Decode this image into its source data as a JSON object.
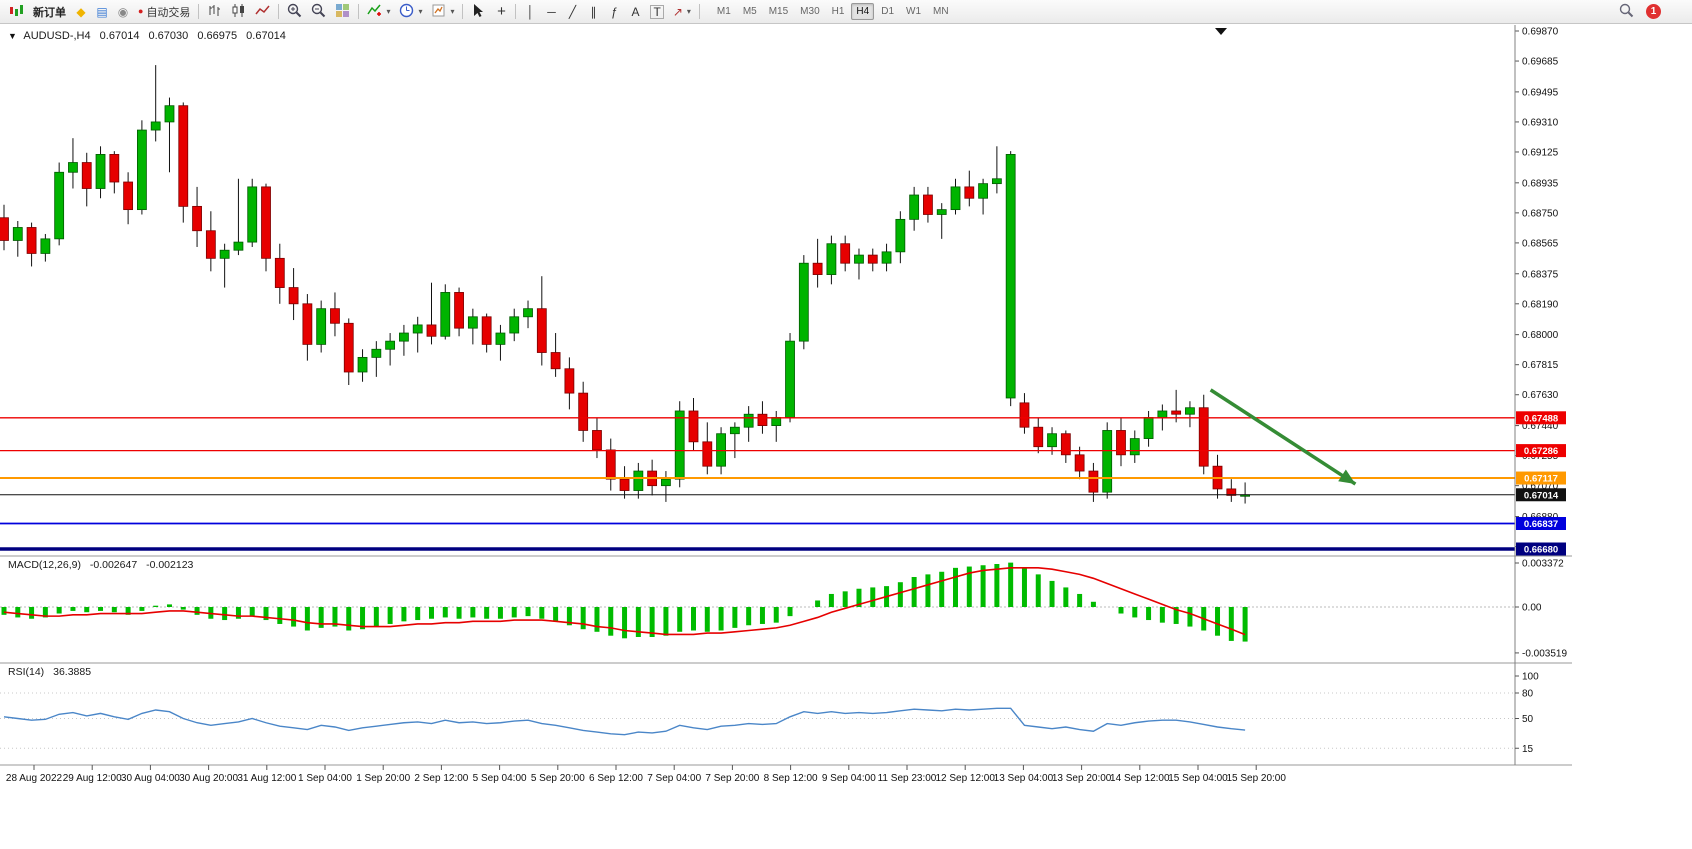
{
  "toolbar": {
    "new_order": "新订单",
    "autotrading": "自动交易",
    "timeframes": [
      "M1",
      "M5",
      "M15",
      "M30",
      "H1",
      "H4",
      "D1",
      "W1",
      "MN"
    ],
    "active_timeframe": "H4",
    "notification_count": "1"
  },
  "icons": {
    "title_marker": "▼",
    "metaeditor": "◆",
    "terminal": "▤",
    "community": "◉",
    "autotrading_dot": "●",
    "crosshair": "+",
    "vertical_line": "│",
    "horizontal_line": "─",
    "trendline": "╱",
    "channel": "∥",
    "fibonacci": "ƒ",
    "text": "A",
    "text_label": "T",
    "arrows": "↗",
    "dropdown": "▾"
  },
  "chart": {
    "symbol_title": "AUDUSD-,H4",
    "open": "0.67014",
    "high": "0.67030",
    "low": "0.66975",
    "close": "0.67014",
    "price_axis_labels": [
      "0.69870",
      "0.69685",
      "0.69495",
      "0.69310",
      "0.69125",
      "0.68935",
      "0.68750",
      "0.68565",
      "0.68375",
      "0.68190",
      "0.68000",
      "0.67815",
      "0.67630",
      "0.67440",
      "0.67255",
      "0.67070",
      "0.66880",
      "0.66695"
    ],
    "time_axis_labels": [
      "28 Aug 2022",
      "29 Aug 12:00",
      "30 Aug 04:00",
      "30 Aug 20:00",
      "31 Aug 12:00",
      "1 Sep 04:00",
      "1 Sep 20:00",
      "2 Sep 12:00",
      "5 Sep 04:00",
      "5 Sep 20:00",
      "6 Sep 12:00",
      "7 Sep 04:00",
      "7 Sep 20:00",
      "8 Sep 12:00",
      "9 Sep 04:00",
      "11 Sep 23:00",
      "12 Sep 12:00",
      "13 Sep 04:00",
      "13 Sep 20:00",
      "14 Sep 12:00",
      "15 Sep 04:00",
      "15 Sep 20:00"
    ],
    "horizontal_lines": [
      {
        "name": "resistance-upper",
        "price": 0.67488,
        "label": "0.67488",
        "color": "#ee0000",
        "width": 1.3
      },
      {
        "name": "resistance-lower",
        "price": 0.67286,
        "label": "0.67286",
        "color": "#ee0000",
        "width": 1.3
      },
      {
        "name": "support-orange",
        "price": 0.67117,
        "label": "0.67117",
        "color": "#ff9900",
        "width": 2
      },
      {
        "name": "current-price",
        "price": 0.67014,
        "label": "0.67014",
        "color": "#111111",
        "width": 1
      },
      {
        "name": "support-blue",
        "price": 0.66837,
        "label": "0.66837",
        "color": "#0000dd",
        "width": 1.8
      },
      {
        "name": "support-navy",
        "price": 0.6668,
        "label": "0.66680",
        "color": "#000080",
        "width": 3.5
      }
    ]
  },
  "macd": {
    "label": "MACD(12,26,9)",
    "value_main": "-0.002647",
    "value_signal": "-0.002123",
    "axis_labels": [
      "0.003372",
      "0.00",
      "-0.003519"
    ]
  },
  "rsi": {
    "label": "RSI(14)",
    "value": "36.3885",
    "axis_labels": [
      "100",
      "80",
      "50",
      "15"
    ]
  },
  "theme": {
    "up_color": "#00b400",
    "down_color": "#e60000",
    "up_border": "#005a00",
    "down_border": "#7a0000",
    "wick_color": "#111111",
    "macd_color": "#00bb00",
    "signal_color": "#e60000",
    "rsi_color": "#4a86c8",
    "arrow_color": "#358c35"
  },
  "chart_data": {
    "type": "candlestick",
    "symbol": "AUDUSD",
    "timeframe": "H4",
    "price_range": [
      0.6668,
      0.6987
    ],
    "candles_ohlc": [
      [
        0.6872,
        0.688,
        0.6852,
        0.6858
      ],
      [
        0.6858,
        0.687,
        0.6848,
        0.6866
      ],
      [
        0.6866,
        0.6869,
        0.6842,
        0.685
      ],
      [
        0.685,
        0.6862,
        0.6845,
        0.6859
      ],
      [
        0.6859,
        0.6906,
        0.6855,
        0.69
      ],
      [
        0.69,
        0.6921,
        0.689,
        0.6906
      ],
      [
        0.6906,
        0.6912,
        0.6879,
        0.689
      ],
      [
        0.689,
        0.6916,
        0.6884,
        0.6911
      ],
      [
        0.6911,
        0.6913,
        0.6887,
        0.6894
      ],
      [
        0.6894,
        0.69,
        0.6868,
        0.6877
      ],
      [
        0.6877,
        0.6932,
        0.6874,
        0.6926
      ],
      [
        0.6926,
        0.6966,
        0.6919,
        0.6931
      ],
      [
        0.6931,
        0.6946,
        0.69,
        0.6941
      ],
      [
        0.6941,
        0.6943,
        0.6869,
        0.6879
      ],
      [
        0.6879,
        0.6891,
        0.6854,
        0.6864
      ],
      [
        0.6864,
        0.6876,
        0.6839,
        0.6847
      ],
      [
        0.6847,
        0.6856,
        0.6829,
        0.6852
      ],
      [
        0.6852,
        0.6896,
        0.6849,
        0.6857
      ],
      [
        0.6857,
        0.6896,
        0.6854,
        0.6891
      ],
      [
        0.6891,
        0.6893,
        0.6839,
        0.6847
      ],
      [
        0.6847,
        0.6856,
        0.6819,
        0.6829
      ],
      [
        0.6829,
        0.6841,
        0.6809,
        0.6819
      ],
      [
        0.6819,
        0.6825,
        0.6784,
        0.6794
      ],
      [
        0.6794,
        0.6821,
        0.6789,
        0.6816
      ],
      [
        0.6816,
        0.6826,
        0.6799,
        0.6807
      ],
      [
        0.6807,
        0.681,
        0.6769,
        0.6777
      ],
      [
        0.6777,
        0.6791,
        0.6771,
        0.6786
      ],
      [
        0.6786,
        0.6796,
        0.6774,
        0.6791
      ],
      [
        0.6791,
        0.6801,
        0.6781,
        0.6796
      ],
      [
        0.6796,
        0.6806,
        0.6787,
        0.6801
      ],
      [
        0.6801,
        0.6811,
        0.6789,
        0.6806
      ],
      [
        0.6806,
        0.6832,
        0.6794,
        0.6799
      ],
      [
        0.6799,
        0.6831,
        0.6797,
        0.6826
      ],
      [
        0.6826,
        0.6829,
        0.6799,
        0.6804
      ],
      [
        0.6804,
        0.6816,
        0.6794,
        0.6811
      ],
      [
        0.6811,
        0.6813,
        0.6789,
        0.6794
      ],
      [
        0.6794,
        0.6806,
        0.6784,
        0.6801
      ],
      [
        0.6801,
        0.6816,
        0.6796,
        0.6811
      ],
      [
        0.6811,
        0.6821,
        0.6804,
        0.6816
      ],
      [
        0.6816,
        0.6836,
        0.6781,
        0.6789
      ],
      [
        0.6789,
        0.6801,
        0.6774,
        0.6779
      ],
      [
        0.6779,
        0.6786,
        0.6754,
        0.6764
      ],
      [
        0.6764,
        0.6771,
        0.6734,
        0.6741
      ],
      [
        0.6741,
        0.6749,
        0.6724,
        0.6729
      ],
      [
        0.6729,
        0.6736,
        0.6704,
        0.6711
      ],
      [
        0.6711,
        0.6719,
        0.6699,
        0.6704
      ],
      [
        0.6704,
        0.6721,
        0.6699,
        0.6716
      ],
      [
        0.6716,
        0.6723,
        0.6701,
        0.6707
      ],
      [
        0.6707,
        0.6716,
        0.6697,
        0.6711
      ],
      [
        0.6711,
        0.6759,
        0.6706,
        0.6753
      ],
      [
        0.6753,
        0.6761,
        0.6729,
        0.6734
      ],
      [
        0.6734,
        0.6746,
        0.6714,
        0.6719
      ],
      [
        0.6719,
        0.6743,
        0.6714,
        0.6739
      ],
      [
        0.6739,
        0.6746,
        0.6724,
        0.6743
      ],
      [
        0.6743,
        0.6756,
        0.6734,
        0.6751
      ],
      [
        0.6751,
        0.6759,
        0.6739,
        0.6744
      ],
      [
        0.6744,
        0.6753,
        0.6734,
        0.6749
      ],
      [
        0.6749,
        0.6801,
        0.6746,
        0.6796
      ],
      [
        0.6796,
        0.6849,
        0.6791,
        0.6844
      ],
      [
        0.6844,
        0.6859,
        0.6829,
        0.6837
      ],
      [
        0.6837,
        0.6861,
        0.6831,
        0.6856
      ],
      [
        0.6856,
        0.6861,
        0.6839,
        0.6844
      ],
      [
        0.6844,
        0.6853,
        0.6834,
        0.6849
      ],
      [
        0.6849,
        0.6853,
        0.6839,
        0.6844
      ],
      [
        0.6844,
        0.6856,
        0.6839,
        0.6851
      ],
      [
        0.6851,
        0.6876,
        0.6844,
        0.6871
      ],
      [
        0.6871,
        0.6891,
        0.6864,
        0.6886
      ],
      [
        0.6886,
        0.6891,
        0.6869,
        0.6874
      ],
      [
        0.6874,
        0.6881,
        0.6859,
        0.6877
      ],
      [
        0.6877,
        0.6896,
        0.6874,
        0.6891
      ],
      [
        0.6891,
        0.6901,
        0.6879,
        0.6884
      ],
      [
        0.6884,
        0.6896,
        0.6874,
        0.6893
      ],
      [
        0.6893,
        0.6916,
        0.6887,
        0.6896
      ],
      [
        0.6761,
        0.6913,
        0.6756,
        0.6911
      ],
      [
        0.6758,
        0.6764,
        0.6739,
        0.6743
      ],
      [
        0.6743,
        0.6749,
        0.6727,
        0.6731
      ],
      [
        0.6731,
        0.6743,
        0.6726,
        0.6739
      ],
      [
        0.6739,
        0.6741,
        0.6721,
        0.6726
      ],
      [
        0.6726,
        0.6731,
        0.6711,
        0.6716
      ],
      [
        0.6716,
        0.6721,
        0.6697,
        0.6703
      ],
      [
        0.6703,
        0.6746,
        0.6699,
        0.6741
      ],
      [
        0.6741,
        0.6749,
        0.6719,
        0.6726
      ],
      [
        0.6726,
        0.6741,
        0.6721,
        0.6736
      ],
      [
        0.6736,
        0.6753,
        0.6731,
        0.6749
      ],
      [
        0.6749,
        0.6757,
        0.6741,
        0.6753
      ],
      [
        0.6753,
        0.6766,
        0.6746,
        0.6751
      ],
      [
        0.6751,
        0.6759,
        0.6743,
        0.6755
      ],
      [
        0.6755,
        0.6763,
        0.6714,
        0.6719
      ],
      [
        0.6719,
        0.6726,
        0.6699,
        0.6705
      ],
      [
        0.6705,
        0.6711,
        0.6697,
        0.6701
      ],
      [
        0.6701,
        0.6709,
        0.6696,
        0.67014
      ]
    ],
    "indicators": [
      {
        "type": "macd",
        "params": "12,26,9",
        "range": [
          -0.003519,
          0.003372
        ],
        "histogram": [
          -0.0006,
          -0.0008,
          -0.0009,
          -0.0008,
          -0.0005,
          -0.0003,
          -0.0004,
          -0.0003,
          -0.0004,
          -0.0006,
          -0.0003,
          0.0001,
          0.0002,
          -0.0002,
          -0.0006,
          -0.0009,
          -0.001,
          -0.0009,
          -0.0007,
          -0.001,
          -0.0013,
          -0.0015,
          -0.0018,
          -0.0016,
          -0.0015,
          -0.0018,
          -0.0017,
          -0.0015,
          -0.0013,
          -0.0011,
          -0.001,
          -0.0009,
          -0.0008,
          -0.0009,
          -0.0008,
          -0.0009,
          -0.0009,
          -0.0008,
          -0.0007,
          -0.0009,
          -0.0011,
          -0.0014,
          -0.0017,
          -0.0019,
          -0.0022,
          -0.0024,
          -0.0023,
          -0.0023,
          -0.0022,
          -0.0019,
          -0.0018,
          -0.0019,
          -0.0018,
          -0.0016,
          -0.0014,
          -0.0013,
          -0.0012,
          -0.0007,
          0.0,
          0.0005,
          0.001,
          0.0012,
          0.0014,
          0.0015,
          0.0016,
          0.0019,
          0.0023,
          0.0025,
          0.0027,
          0.003,
          0.0031,
          0.0032,
          0.0033,
          0.0034,
          0.003,
          0.0025,
          0.002,
          0.0015,
          0.001,
          0.0004,
          0.0,
          -0.0005,
          -0.0008,
          -0.001,
          -0.0012,
          -0.0013,
          -0.0015,
          -0.0018,
          -0.0022,
          -0.0026,
          -0.00265
        ],
        "signal": [
          -0.0004,
          -0.0005,
          -0.0006,
          -0.0007,
          -0.0007,
          -0.0006,
          -0.0006,
          -0.0005,
          -0.0005,
          -0.0005,
          -0.0005,
          -0.0004,
          -0.0003,
          -0.0003,
          -0.0004,
          -0.0005,
          -0.0006,
          -0.0007,
          -0.0007,
          -0.0008,
          -0.0009,
          -0.001,
          -0.0012,
          -0.0013,
          -0.0013,
          -0.0014,
          -0.0015,
          -0.0015,
          -0.0015,
          -0.0014,
          -0.0013,
          -0.0013,
          -0.0012,
          -0.0012,
          -0.0011,
          -0.0011,
          -0.0011,
          -0.001,
          -0.001,
          -0.001,
          -0.0011,
          -0.0012,
          -0.0013,
          -0.0015,
          -0.0016,
          -0.0018,
          -0.0019,
          -0.002,
          -0.0021,
          -0.0021,
          -0.0021,
          -0.002,
          -0.002,
          -0.0019,
          -0.0018,
          -0.0017,
          -0.0016,
          -0.0014,
          -0.0011,
          -0.0008,
          -0.0004,
          -0.0001,
          0.0002,
          0.0005,
          0.0008,
          0.0011,
          0.0014,
          0.0017,
          0.002,
          0.0023,
          0.0026,
          0.0028,
          0.0029,
          0.003,
          0.003,
          0.003,
          0.0029,
          0.0027,
          0.0025,
          0.0022,
          0.0018,
          0.0014,
          0.001,
          0.0006,
          0.0002,
          -0.0002,
          -0.0005,
          -0.0009,
          -0.0013,
          -0.0017,
          -0.00212
        ]
      },
      {
        "type": "rsi",
        "params": "14",
        "range": [
          0,
          100
        ],
        "values": [
          52,
          50,
          48,
          49,
          55,
          57,
          53,
          56,
          52,
          49,
          56,
          60,
          58,
          50,
          45,
          42,
          44,
          46,
          50,
          45,
          41,
          39,
          37,
          42,
          40,
          36,
          39,
          41,
          43,
          45,
          46,
          44,
          48,
          45,
          46,
          44,
          45,
          47,
          48,
          44,
          42,
          39,
          36,
          34,
          32,
          31,
          34,
          33,
          35,
          42,
          39,
          37,
          41,
          42,
          44,
          43,
          44,
          52,
          58,
          56,
          58,
          56,
          57,
          56,
          57,
          59,
          61,
          60,
          59,
          61,
          60,
          61,
          62,
          62,
          42,
          40,
          38,
          40,
          37,
          35,
          44,
          42,
          45,
          47,
          48,
          48,
          46,
          43,
          40,
          38,
          36.39
        ]
      }
    ],
    "annotations": [
      {
        "type": "arrow",
        "from_index": 87.5,
        "from_price": 0.6766,
        "to_index": 98,
        "to_price": 0.6708
      }
    ]
  }
}
